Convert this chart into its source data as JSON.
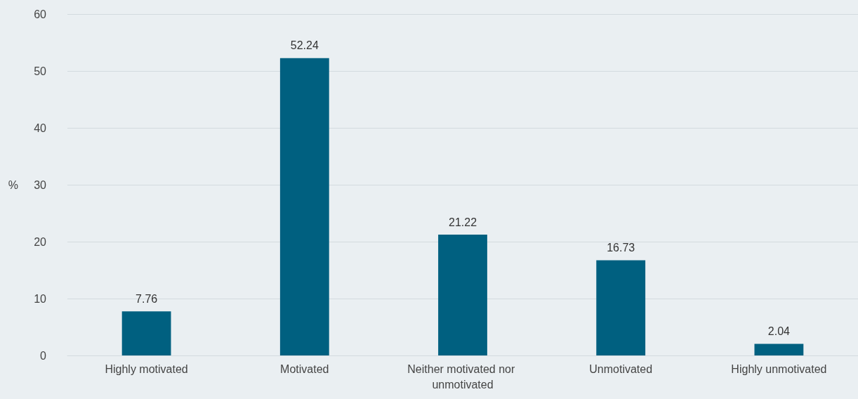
{
  "chart_data": {
    "type": "bar",
    "ylabel": "%",
    "categories": [
      "Highly motivated",
      "Motivated",
      "Neither motivated nor unmotivated",
      "Unmotivated",
      "Highly unmotivated"
    ],
    "values": [
      7.76,
      52.24,
      21.22,
      16.73,
      2.04
    ],
    "color": "#006080",
    "ylim": [
      0,
      60
    ],
    "yticks": [
      0,
      10,
      20,
      30,
      40,
      50,
      60
    ],
    "grid": "y",
    "data_labels": true
  }
}
